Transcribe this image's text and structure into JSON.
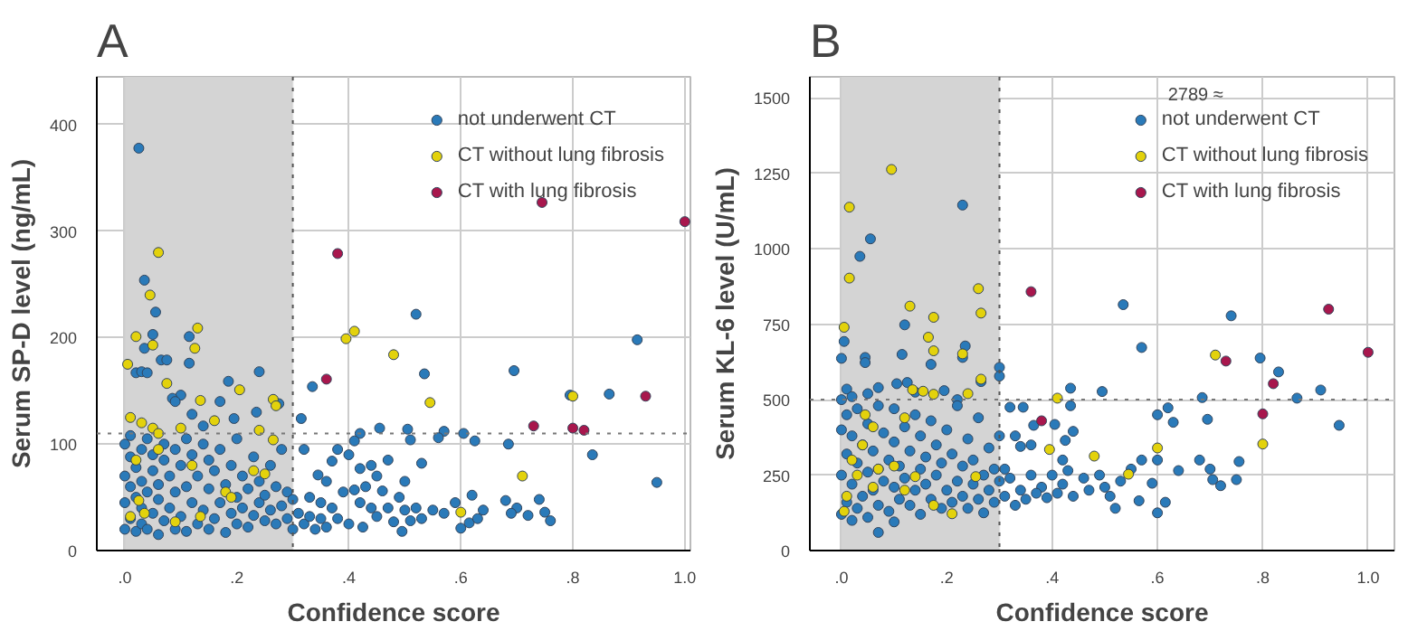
{
  "chart_data": [
    {
      "type": "scatter",
      "title": "A",
      "xlabel": "Confidence score",
      "ylabel": "Serum SP-D level (ng/mL)",
      "xlim": [
        -0.05,
        1.01
      ],
      "ylim": [
        0,
        445
      ],
      "xticks": [
        {
          "value": 0,
          "label": ".0"
        },
        {
          "value": 0.2,
          "label": ".2"
        },
        {
          "value": 0.4,
          "label": ".4"
        },
        {
          "value": 0.6,
          "label": ".6"
        },
        {
          "value": 0.8,
          "label": ".8"
        },
        {
          "value": 1.0,
          "label": "1.0"
        }
      ],
      "yticks": [
        0,
        100,
        200,
        300,
        400
      ],
      "grid": true,
      "legend": "top right",
      "marker": "circle",
      "bands": [
        {
          "axis": "x",
          "from": 0,
          "to": 0.3,
          "color": "#d4d4d4"
        }
      ],
      "ref_lines": [
        {
          "axis": "x",
          "value": 0.3,
          "line_style": "dotted",
          "color": "#555555"
        },
        {
          "axis": "y",
          "value": 110,
          "line_style": "dotted",
          "color": "#777777"
        }
      ],
      "series": [
        {
          "name": "not underwent CT",
          "color": "#2a7ab9",
          "x": [
            0.025,
            0.035,
            0.055,
            0.05,
            0.035,
            0.115,
            0.065,
            0.075,
            0.115,
            0.24,
            0.02,
            0.03,
            0.04,
            0.185,
            0.1,
            0.085,
            0.17,
            0.235,
            0.275,
            0.195,
            0.14,
            0.12,
            0.09,
            0.0,
            0.0,
            0.0,
            0.0,
            0.01,
            0.01,
            0.01,
            0.01,
            0.02,
            0.02,
            0.02,
            0.03,
            0.03,
            0.03,
            0.03,
            0.04,
            0.04,
            0.04,
            0.05,
            0.05,
            0.05,
            0.06,
            0.06,
            0.06,
            0.07,
            0.07,
            0.07,
            0.08,
            0.08,
            0.09,
            0.09,
            0.09,
            0.1,
            0.1,
            0.11,
            0.11,
            0.11,
            0.12,
            0.12,
            0.13,
            0.13,
            0.14,
            0.14,
            0.15,
            0.15,
            0.15,
            0.16,
            0.16,
            0.17,
            0.17,
            0.18,
            0.18,
            0.19,
            0.19,
            0.2,
            0.2,
            0.2,
            0.21,
            0.21,
            0.22,
            0.22,
            0.23,
            0.23,
            0.24,
            0.24,
            0.25,
            0.25,
            0.26,
            0.26,
            0.27,
            0.27,
            0.28,
            0.28,
            0.29,
            0.29,
            0.3,
            0.3,
            0.52,
            0.915,
            0.535,
            0.695,
            0.335,
            0.795,
            0.865,
            0.315,
            0.42,
            0.455,
            0.505,
            0.51,
            0.57,
            0.56,
            0.605,
            0.625,
            0.685,
            0.835,
            0.95,
            0.32,
            0.38,
            0.41,
            0.4,
            0.42,
            0.37,
            0.44,
            0.45,
            0.47,
            0.5,
            0.53,
            0.345,
            0.36,
            0.41,
            0.43,
            0.46,
            0.49,
            0.33,
            0.35,
            0.37,
            0.39,
            0.42,
            0.44,
            0.47,
            0.5,
            0.52,
            0.55,
            0.57,
            0.59,
            0.62,
            0.64,
            0.68,
            0.7,
            0.72,
            0.74,
            0.75,
            0.76,
            0.69,
            0.6,
            0.615,
            0.63,
            0.495,
            0.425,
            0.4,
            0.38,
            0.36,
            0.34,
            0.32,
            0.31,
            0.33,
            0.35,
            0.45,
            0.48,
            0.51,
            0.53
          ],
          "values": [
            378,
            254,
            224,
            203,
            190,
            201,
            179,
            179,
            176,
            168,
            167,
            168,
            167,
            159,
            146,
            143,
            140,
            130,
            138,
            124,
            117,
            128,
            140,
            20,
            45,
            70,
            100,
            30,
            60,
            88,
            108,
            18,
            50,
            78,
            25,
            40,
            65,
            95,
            20,
            55,
            105,
            35,
            75,
            90,
            15,
            48,
            62,
            28,
            85,
            100,
            40,
            70,
            20,
            55,
            95,
            32,
            80,
            18,
            60,
            105,
            45,
            90,
            25,
            70,
            38,
            100,
            20,
            58,
            85,
            30,
            75,
            45,
            95,
            17,
            62,
            35,
            80,
            25,
            50,
            105,
            40,
            70,
            22,
            58,
            33,
            88,
            45,
            65,
            28,
            52,
            38,
            80,
            25,
            60,
            42,
            95,
            30,
            55,
            48,
            20,
            222,
            198,
            166,
            169,
            154,
            146,
            147,
            124,
            110,
            115,
            114,
            104,
            112,
            106,
            110,
            103,
            100,
            90,
            64,
            95,
            95,
            103,
            90,
            77,
            84,
            80,
            70,
            85,
            65,
            82,
            71,
            65,
            57,
            60,
            56,
            50,
            50,
            45,
            40,
            55,
            45,
            40,
            40,
            38,
            40,
            38,
            35,
            45,
            52,
            38,
            47,
            40,
            33,
            48,
            36,
            28,
            35,
            21,
            26,
            30,
            18,
            22,
            25,
            30,
            22,
            20,
            25,
            35,
            32,
            30,
            32,
            27,
            28,
            30
          ]
        },
        {
          "name": "CT without lung fibrosis",
          "color": "#e3d20c",
          "x": [
            0.06,
            0.045,
            0.02,
            0.05,
            0.13,
            0.125,
            0.005,
            0.075,
            0.205,
            0.135,
            0.265,
            0.27,
            0.01,
            0.03,
            0.05,
            0.06,
            0.1,
            0.16,
            0.24,
            0.265,
            0.25,
            0.23,
            0.18,
            0.09,
            0.025,
            0.01,
            0.135,
            0.06,
            0.02,
            0.035,
            0.19,
            0.12,
            0.395,
            0.41,
            0.48,
            0.545,
            0.8,
            0.71,
            0.6
          ],
          "values": [
            280,
            240,
            201,
            193,
            209,
            190,
            175,
            157,
            151,
            141,
            142,
            136,
            125,
            120,
            115,
            110,
            115,
            122,
            113,
            104,
            72,
            75,
            55,
            27,
            47,
            32,
            32,
            95,
            85,
            35,
            50,
            80,
            199,
            206,
            184,
            139,
            145,
            70,
            36
          ]
        },
        {
          "name": "CT with lung fibrosis",
          "color": "#a8174d",
          "x": [
            0.38,
            0.36,
            0.745,
            1.0,
            0.73,
            0.8,
            0.82,
            0.93
          ],
          "values": [
            279,
            161,
            327,
            309,
            117,
            115,
            113,
            145
          ]
        }
      ]
    },
    {
      "type": "scatter",
      "title": "B",
      "xlabel": "Confidence score",
      "ylabel": "Serum KL-6 level (U/mL)",
      "xlim": [
        -0.06,
        1.05
      ],
      "ylim": [
        0,
        1570
      ],
      "xticks": [
        {
          "value": 0,
          "label": ".0"
        },
        {
          "value": 0.2,
          "label": ".2"
        },
        {
          "value": 0.4,
          "label": ".4"
        },
        {
          "value": 0.6,
          "label": ".6"
        },
        {
          "value": 0.8,
          "label": ".8"
        },
        {
          "value": 1.0,
          "label": "1.0"
        }
      ],
      "yticks": [
        0,
        250,
        500,
        750,
        1000,
        1250,
        1500
      ],
      "grid": true,
      "legend": "top right",
      "marker": "circle",
      "annotations": [
        "2789 ≈"
      ],
      "bands": [
        {
          "axis": "x",
          "from": 0,
          "to": 0.3,
          "color": "#d4d4d4"
        }
      ],
      "ref_lines": [
        {
          "axis": "x",
          "value": 0.3,
          "line_style": "dotted",
          "color": "#555555"
        },
        {
          "axis": "y",
          "value": 500,
          "line_style": "dotted",
          "color": "#777777"
        }
      ],
      "series": [
        {
          "name": "not underwent CT",
          "color": "#2a7ab9",
          "x": [
            0.055,
            0.035,
            0.23,
            0.12,
            0.005,
            0.0,
            0.045,
            0.045,
            0.115,
            0.235,
            0.23,
            0.17,
            0.3,
            0.3,
            0.265,
            0.125,
            0.105,
            0.14,
            0.195,
            0.22,
            0.07,
            0.01,
            0.0,
            0.0,
            0.0,
            0.0,
            0.01,
            0.01,
            0.01,
            0.02,
            0.02,
            0.02,
            0.02,
            0.03,
            0.03,
            0.03,
            0.04,
            0.04,
            0.05,
            0.05,
            0.05,
            0.05,
            0.06,
            0.06,
            0.07,
            0.07,
            0.07,
            0.07,
            0.08,
            0.08,
            0.09,
            0.09,
            0.1,
            0.1,
            0.1,
            0.1,
            0.11,
            0.11,
            0.12,
            0.12,
            0.13,
            0.13,
            0.14,
            0.14,
            0.15,
            0.15,
            0.15,
            0.16,
            0.16,
            0.17,
            0.17,
            0.18,
            0.18,
            0.19,
            0.19,
            0.2,
            0.2,
            0.21,
            0.21,
            0.22,
            0.22,
            0.23,
            0.23,
            0.24,
            0.24,
            0.25,
            0.25,
            0.26,
            0.26,
            0.27,
            0.27,
            0.28,
            0.28,
            0.29,
            0.29,
            0.3,
            0.3,
            0.535,
            0.74,
            0.57,
            0.795,
            0.83,
            0.435,
            0.495,
            0.685,
            0.865,
            0.91,
            0.945,
            0.32,
            0.345,
            0.435,
            0.365,
            0.405,
            0.34,
            0.425,
            0.6,
            0.62,
            0.63,
            0.695,
            0.6,
            0.57,
            0.59,
            0.64,
            0.68,
            0.7,
            0.72,
            0.705,
            0.755,
            0.75,
            0.6,
            0.615,
            0.565,
            0.52,
            0.51,
            0.5,
            0.49,
            0.46,
            0.43,
            0.42,
            0.4,
            0.38,
            0.36,
            0.34,
            0.32,
            0.31,
            0.33,
            0.35,
            0.37,
            0.39,
            0.41,
            0.44,
            0.47,
            0.53,
            0.55,
            0.42,
            0.44,
            0.36,
            0.33,
            0.31
          ],
          "values": [
            1033,
            975,
            1145,
            748,
            693,
            637,
            640,
            623,
            650,
            678,
            640,
            617,
            607,
            578,
            560,
            557,
            553,
            525,
            530,
            500,
            540,
            535,
            120,
            250,
            400,
            500,
            160,
            320,
            450,
            100,
            220,
            380,
            510,
            140,
            290,
            470,
            180,
            350,
            110,
            260,
            420,
            520,
            200,
            330,
            60,
            150,
            270,
            480,
            230,
            390,
            130,
            300,
            95,
            210,
            360,
            470,
            170,
            280,
            240,
            410,
            150,
            330,
            200,
            450,
            120,
            270,
            380,
            220,
            310,
            170,
            430,
            250,
            350,
            140,
            290,
            200,
            400,
            160,
            320,
            230,
            480,
            180,
            280,
            140,
            370,
            220,
            300,
            170,
            440,
            250,
            125,
            200,
            340,
            160,
            270,
            230,
            380,
            815,
            778,
            673,
            638,
            592,
            538,
            527,
            507,
            505,
            532,
            415,
            475,
            475,
            480,
            415,
            418,
            345,
            365,
            450,
            473,
            425,
            435,
            300,
            300,
            223,
            265,
            300,
            270,
            215,
            235,
            295,
            235,
            125,
            160,
            165,
            140,
            180,
            210,
            250,
            240,
            265,
            220,
            250,
            210,
            250,
            200,
            240,
            180,
            150,
            170,
            190,
            175,
            190,
            180,
            200,
            230,
            270,
            300,
            395,
            350,
            380,
            270
          ]
        },
        {
          "name": "CT without lung fibrosis",
          "color": "#e3d20c",
          "x": [
            0.095,
            0.015,
            0.015,
            0.005,
            0.26,
            0.265,
            0.13,
            0.175,
            0.165,
            0.175,
            0.23,
            0.265,
            0.135,
            0.155,
            0.175,
            0.24,
            0.045,
            0.06,
            0.12,
            0.255,
            0.21,
            0.175,
            0.14,
            0.03,
            0.01,
            0.005,
            0.06,
            0.1,
            0.04,
            0.02,
            0.07,
            0.12,
            0.41,
            0.395,
            0.48,
            0.545,
            0.6,
            0.71,
            0.8
          ],
          "values": [
            1263,
            1138,
            903,
            740,
            868,
            787,
            810,
            773,
            707,
            662,
            652,
            568,
            533,
            528,
            518,
            520,
            450,
            410,
            440,
            245,
            122,
            150,
            245,
            250,
            180,
            130,
            210,
            280,
            350,
            300,
            270,
            200,
            505,
            335,
            313,
            253,
            340,
            648,
            353
          ]
        },
        {
          "name": "CT with lung fibrosis",
          "color": "#a8174d",
          "x": [
            0.36,
            0.38,
            0.73,
            0.82,
            0.8,
            0.925,
            1.0
          ],
          "values": [
            858,
            430,
            628,
            553,
            453,
            800,
            657
          ]
        }
      ]
    }
  ]
}
